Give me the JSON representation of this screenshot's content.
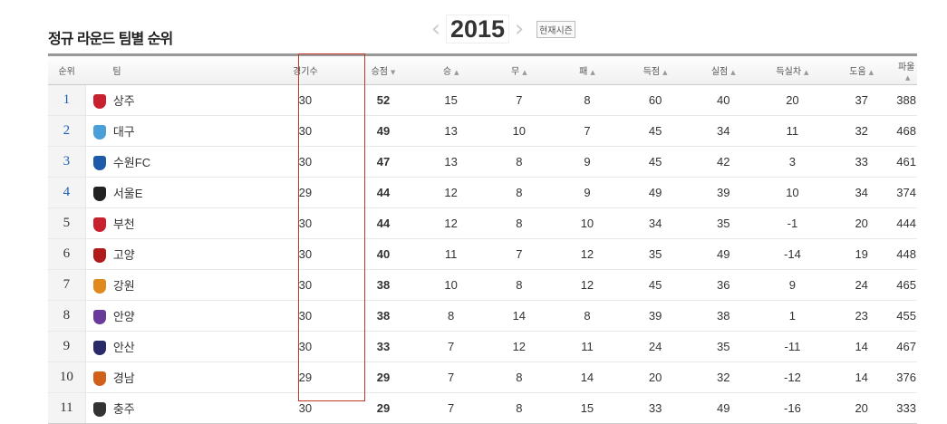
{
  "title": "정규 라운드 팀별 순위",
  "season": {
    "year": "2015",
    "current_label": "현재시즌",
    "prev": "‹",
    "next": "›"
  },
  "columns": [
    "순위",
    "팀",
    "경기수",
    "승점",
    "승",
    "무",
    "패",
    "득점",
    "실점",
    "득실차",
    "도움",
    "파울"
  ],
  "sort_column": "승점",
  "colors": {
    "highlight": "#c0392b",
    "top_rank": "#1a5fb4"
  },
  "rows": [
    [
      "1",
      "상주",
      "30",
      "52",
      "15",
      "7",
      "8",
      "60",
      "40",
      "20",
      "37",
      "388"
    ],
    [
      "2",
      "대구",
      "30",
      "49",
      "13",
      "10",
      "7",
      "45",
      "34",
      "11",
      "32",
      "468"
    ],
    [
      "3",
      "수원FC",
      "30",
      "47",
      "13",
      "8",
      "9",
      "45",
      "42",
      "3",
      "33",
      "461"
    ],
    [
      "4",
      "서울E",
      "29",
      "44",
      "12",
      "8",
      "9",
      "49",
      "39",
      "10",
      "34",
      "374"
    ],
    [
      "5",
      "부천",
      "30",
      "44",
      "12",
      "8",
      "10",
      "34",
      "35",
      "-1",
      "20",
      "444"
    ],
    [
      "6",
      "고양",
      "30",
      "40",
      "11",
      "7",
      "12",
      "35",
      "49",
      "-14",
      "19",
      "448"
    ],
    [
      "7",
      "강원",
      "30",
      "38",
      "10",
      "8",
      "12",
      "45",
      "36",
      "9",
      "24",
      "465"
    ],
    [
      "8",
      "안양",
      "30",
      "38",
      "8",
      "14",
      "8",
      "39",
      "38",
      "1",
      "23",
      "455"
    ],
    [
      "9",
      "안산",
      "30",
      "33",
      "7",
      "12",
      "11",
      "24",
      "35",
      "-11",
      "14",
      "467"
    ],
    [
      "10",
      "경남",
      "29",
      "29",
      "7",
      "8",
      "14",
      "20",
      "32",
      "-12",
      "14",
      "376"
    ],
    [
      "11",
      "충주",
      "30",
      "29",
      "7",
      "8",
      "15",
      "33",
      "49",
      "-16",
      "20",
      "333"
    ]
  ],
  "logo_colors": [
    "#c8202f",
    "#4a9fd8",
    "#1e5aa8",
    "#222",
    "#c8202f",
    "#b01a1a",
    "#e08a1e",
    "#6a3a9a",
    "#2a2a6a",
    "#d0601a",
    "#333"
  ]
}
